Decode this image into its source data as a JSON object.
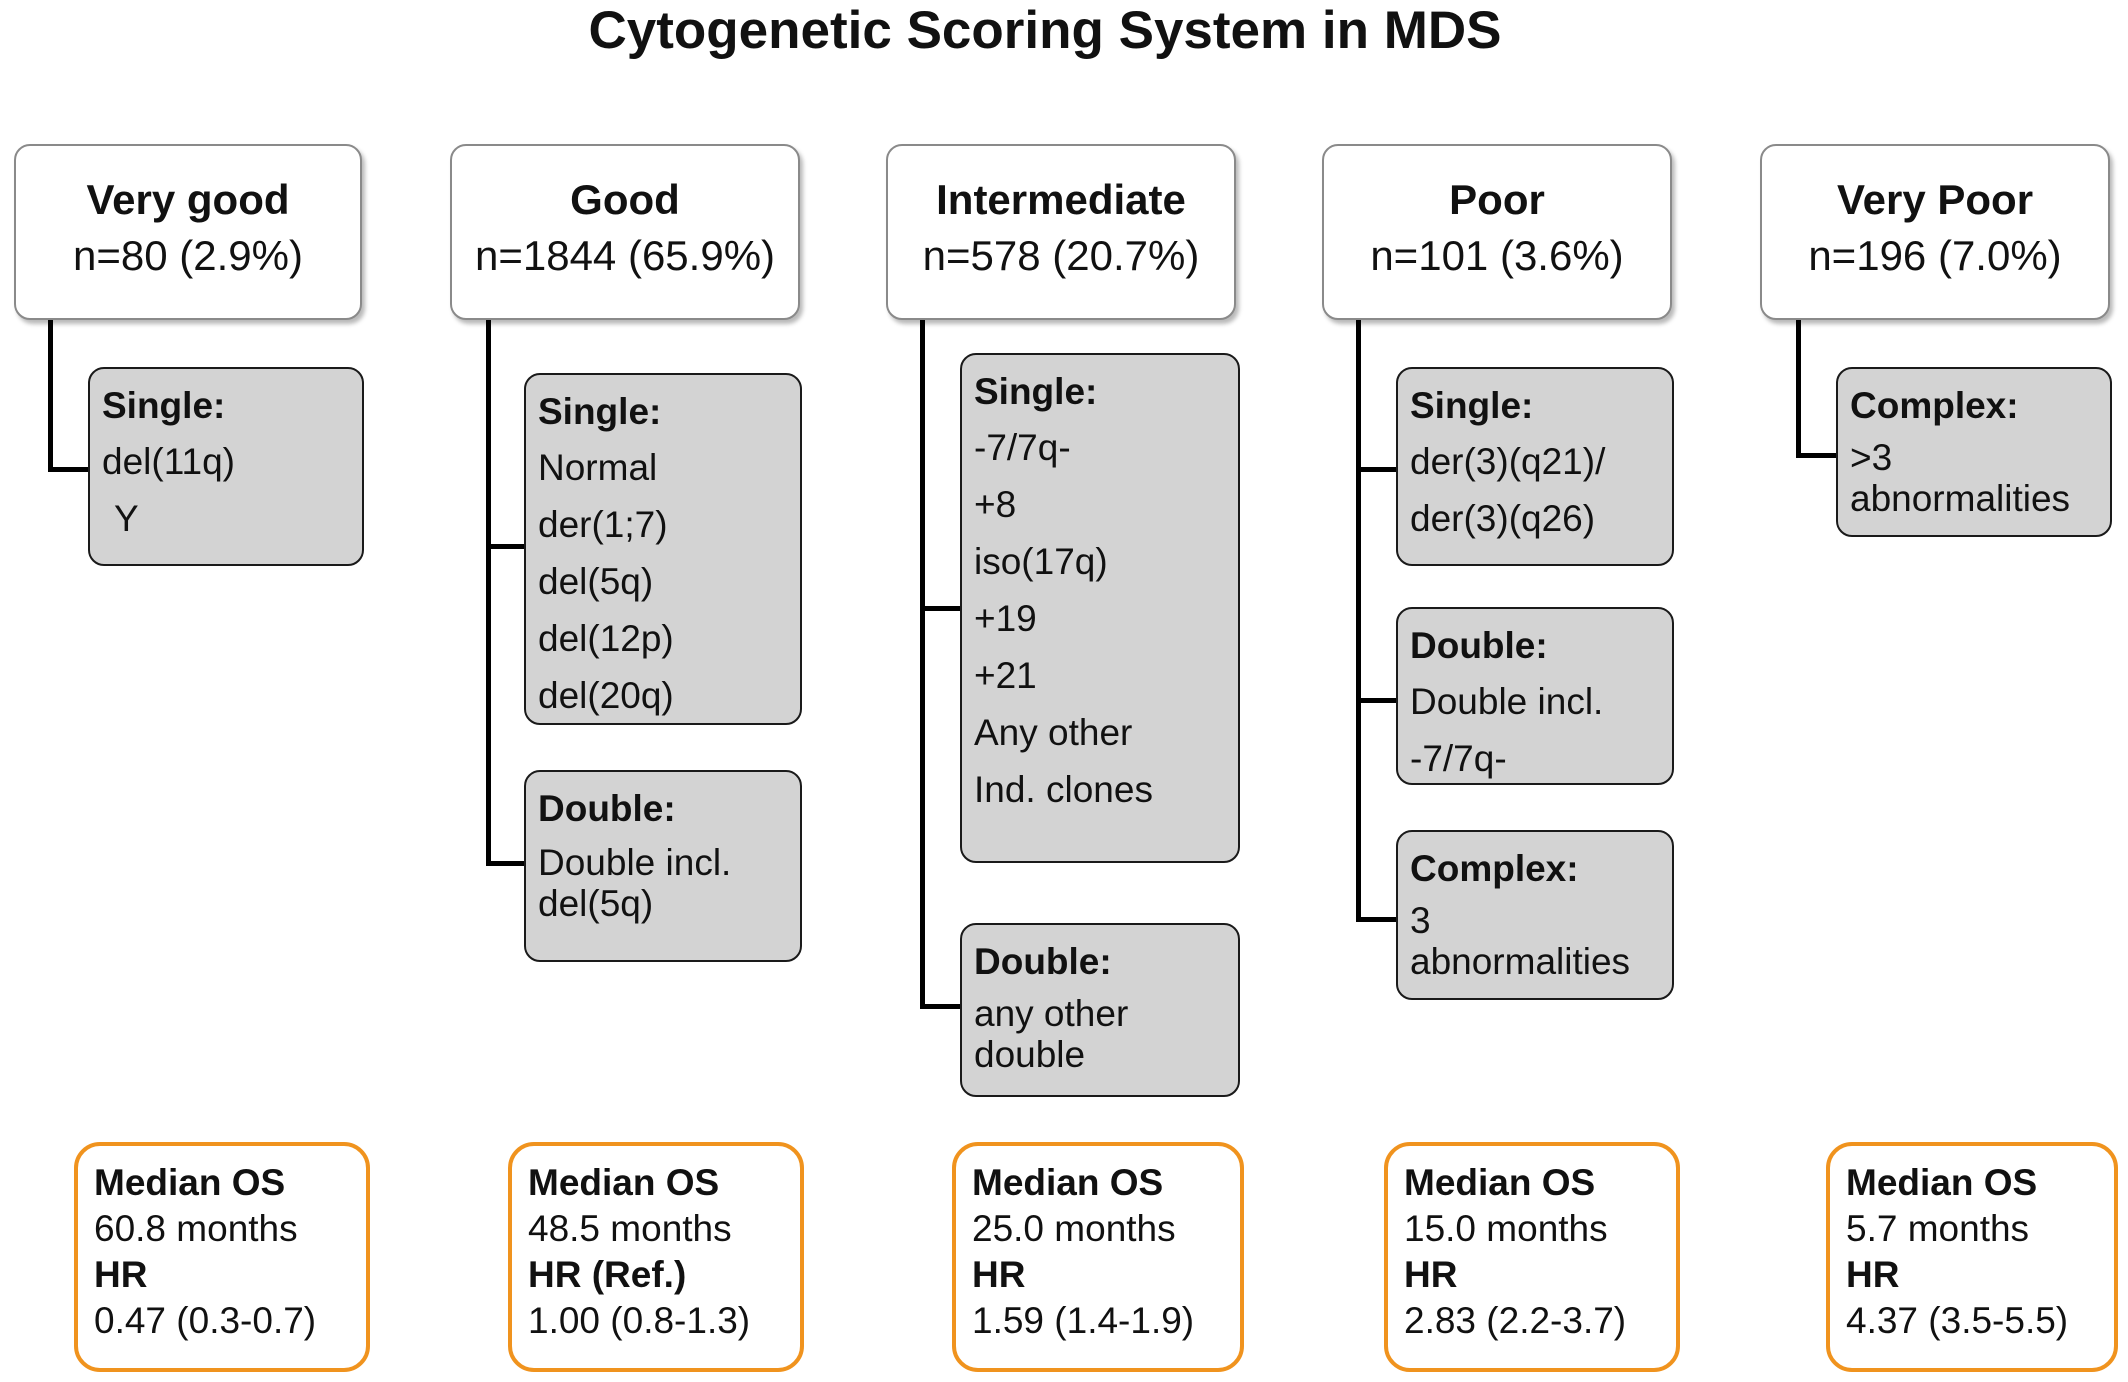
{
  "title": "Cytogenetic Scoring System in MDS",
  "categories": [
    {
      "name": "Very good",
      "n": "n=80 (2.9%)",
      "groups": [
        {
          "label": "Single:",
          "items": [
            "del(11q)",
            " Y"
          ]
        }
      ],
      "os": {
        "label": "Median OS",
        "months": "60.8 months",
        "hr_label": "HR",
        "hr": "0.47 (0.3-0.7)"
      }
    },
    {
      "name": "Good",
      "n": "n=1844 (65.9%)",
      "groups": [
        {
          "label": "Single:",
          "items": [
            "Normal",
            "der(1;7)",
            "del(5q)",
            "del(12p)",
            "del(20q)"
          ]
        },
        {
          "label": "Double:",
          "items": [
            "Double incl.",
            "del(5q)"
          ]
        }
      ],
      "os": {
        "label": "Median OS",
        "months": "48.5 months",
        "hr_label": "HR (Ref.)",
        "hr": "1.00 (0.8-1.3)"
      }
    },
    {
      "name": "Intermediate",
      "n": "n=578 (20.7%)",
      "groups": [
        {
          "label": "Single:",
          "items": [
            "-7/7q-",
            "+8",
            "iso(17q)",
            "+19",
            "+21",
            "Any other",
            "Ind. clones"
          ]
        },
        {
          "label": "Double:",
          "items": [
            "any other",
            "double"
          ]
        }
      ],
      "os": {
        "label": "Median OS",
        "months": "25.0 months",
        "hr_label": "HR",
        "hr": "1.59 (1.4-1.9)"
      }
    },
    {
      "name": "Poor",
      "n": "n=101 (3.6%)",
      "groups": [
        {
          "label": "Single:",
          "items": [
            "der(3)(q21)/",
            "der(3)(q26)"
          ]
        },
        {
          "label": "Double:",
          "items": [
            "Double incl.",
            "-7/7q-"
          ]
        },
        {
          "label": "Complex:",
          "items": [
            "3",
            "abnormalities"
          ]
        }
      ],
      "os": {
        "label": "Median OS",
        "months": "15.0 months",
        "hr_label": "HR",
        "hr": "2.83 (2.2-3.7)"
      }
    },
    {
      "name": "Very Poor",
      "n": "n=196 (7.0%)",
      "groups": [
        {
          "label": "Complex:",
          "items": [
            ">3",
            "abnormalities"
          ]
        }
      ],
      "os": {
        "label": "Median OS",
        "months": "5.7 months",
        "hr_label": "HR",
        "hr": "4.37 (3.5-5.5)"
      }
    }
  ]
}
